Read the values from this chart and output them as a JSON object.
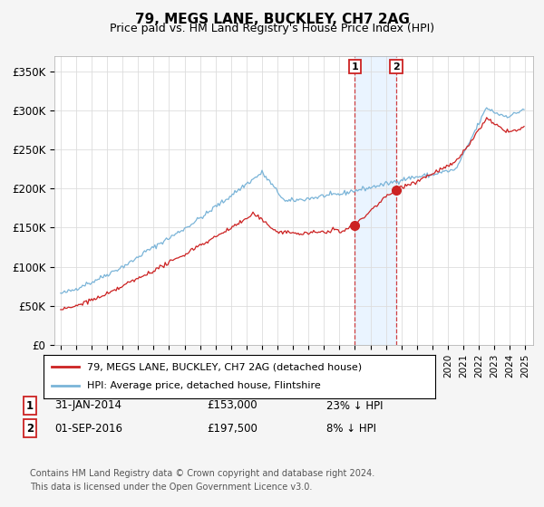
{
  "title": "79, MEGS LANE, BUCKLEY, CH7 2AG",
  "subtitle": "Price paid vs. HM Land Registry's House Price Index (HPI)",
  "ylim": [
    0,
    370000
  ],
  "yticks": [
    0,
    50000,
    100000,
    150000,
    200000,
    250000,
    300000,
    350000
  ],
  "ytick_labels": [
    "£0",
    "£50K",
    "£100K",
    "£150K",
    "£200K",
    "£250K",
    "£300K",
    "£350K"
  ],
  "hpi_color": "#7ab4d8",
  "price_color": "#cc2222",
  "marker1_year": 2014,
  "marker1_month": 1,
  "marker1_price": 153000,
  "marker1_label": "31-JAN-2014",
  "marker1_pct": "23% ↓ HPI",
  "marker2_year": 2016,
  "marker2_month": 9,
  "marker2_price": 197500,
  "marker2_label": "01-SEP-2016",
  "marker2_pct": "8% ↓ HPI",
  "legend_line1": "79, MEGS LANE, BUCKLEY, CH7 2AG (detached house)",
  "legend_line2": "HPI: Average price, detached house, Flintshire",
  "footnote1": "Contains HM Land Registry data © Crown copyright and database right 2024.",
  "footnote2": "This data is licensed under the Open Government Licence v3.0.",
  "background_color": "#f5f5f5",
  "plot_bg_color": "#ffffff",
  "grid_color": "#dddddd",
  "shade_color": "#ddeeff"
}
